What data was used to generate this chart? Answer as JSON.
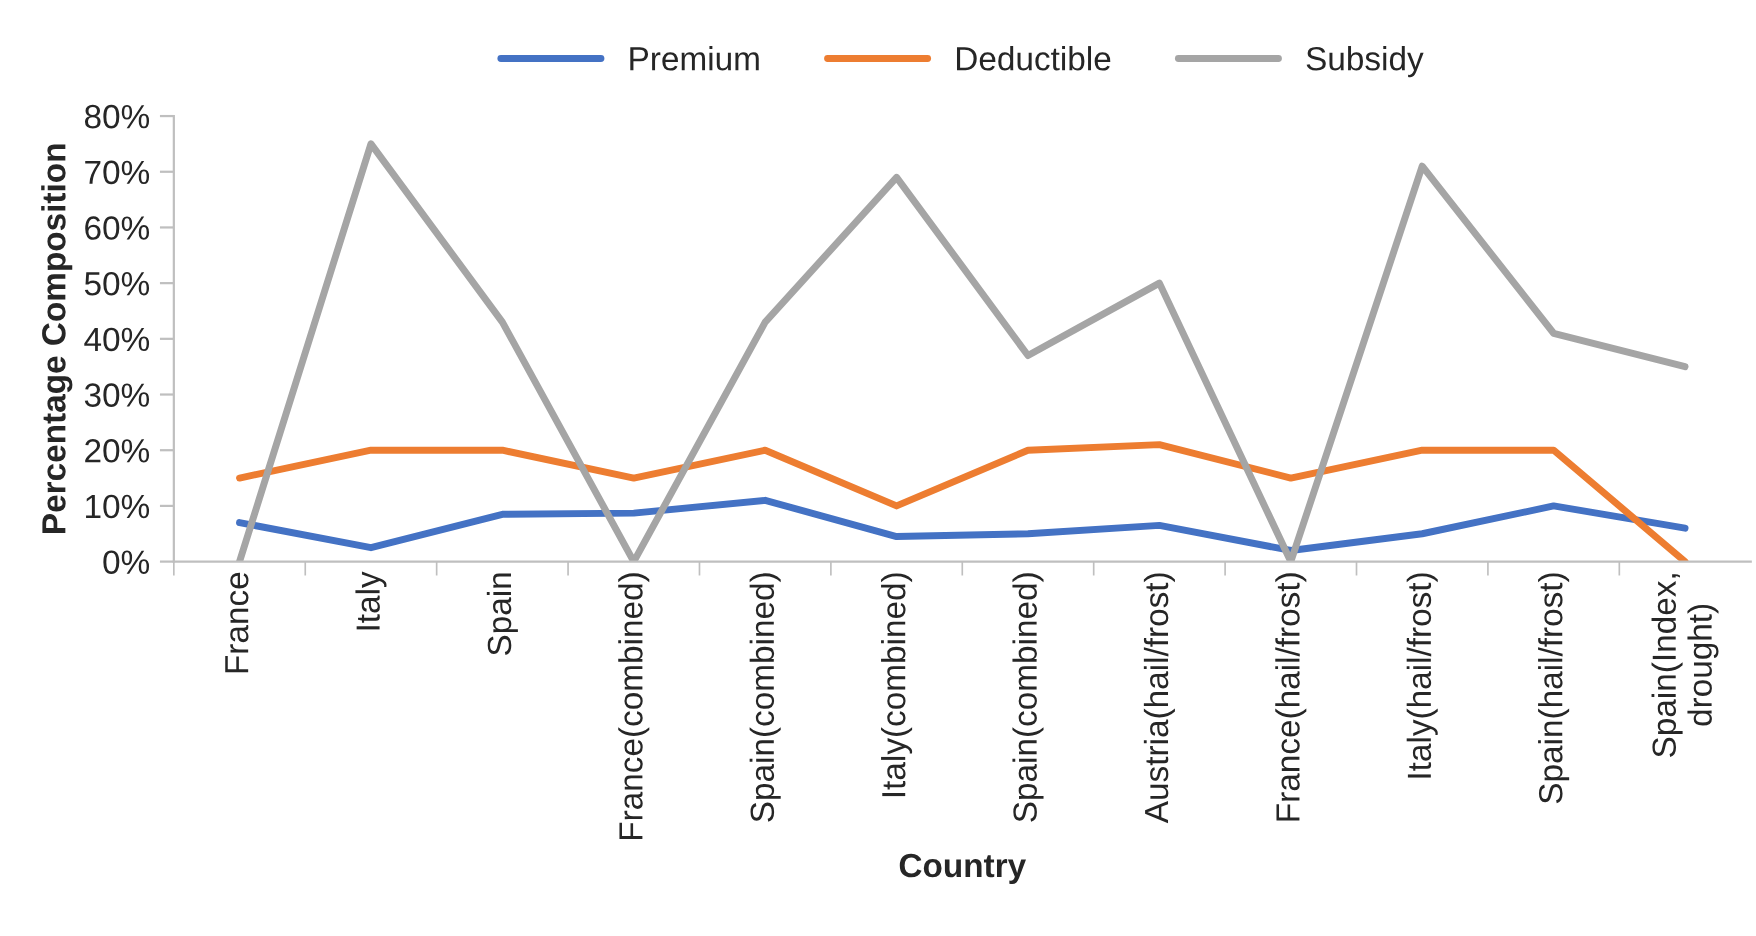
{
  "chart_data": {
    "type": "line",
    "xlabel": "Country",
    "ylabel": "Percentage Composition",
    "categories": [
      "France",
      "Italy",
      "Spain",
      "France(combined)",
      "Spain(combined)",
      "Italy(combined)",
      "Spain(combined)",
      "Austria(hail/frost)",
      "France(hail/frost)",
      "Italy(hail/frost)",
      "Spain(hail/frost)",
      "Spain(Index,\ndrought)"
    ],
    "series": [
      {
        "name": "Premium",
        "color": "#4472c4",
        "values": [
          7,
          2.5,
          8.5,
          8.7,
          11,
          4.5,
          5,
          6.5,
          2,
          5,
          10,
          6
        ]
      },
      {
        "name": "Deductible",
        "color": "#ed7d31",
        "values": [
          15,
          20,
          20,
          15,
          20,
          10,
          20,
          21,
          15,
          20,
          20,
          0
        ]
      },
      {
        "name": "Subsidy",
        "color": "#a5a5a5",
        "values": [
          0,
          75,
          43,
          0,
          43,
          69,
          37,
          50,
          0,
          71,
          41,
          35
        ]
      }
    ],
    "ylim": [
      0,
      80
    ],
    "yticks": [
      {
        "value": 0,
        "label": "0%"
      },
      {
        "value": 10,
        "label": "10%"
      },
      {
        "value": 20,
        "label": "20%"
      },
      {
        "value": 30,
        "label": "30%"
      },
      {
        "value": 40,
        "label": "40%"
      },
      {
        "value": 50,
        "label": "50%"
      },
      {
        "value": 60,
        "label": "60%"
      },
      {
        "value": 70,
        "label": "70%"
      },
      {
        "value": 80,
        "label": "80%"
      }
    ],
    "grid": false,
    "legend": "top",
    "marker": "none",
    "line_style": "solid"
  }
}
